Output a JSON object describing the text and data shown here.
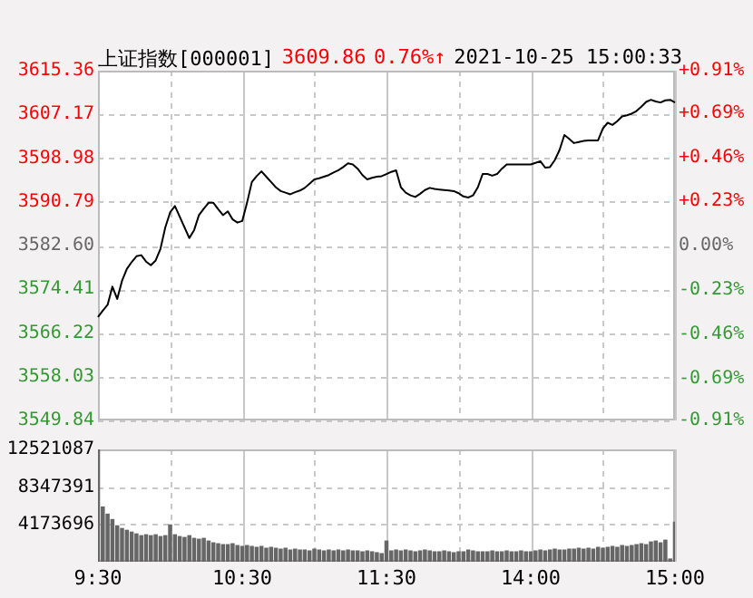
{
  "chart_data": [
    {
      "type": "line",
      "title": "上证指数[000001]",
      "annotations": [
        "3609.86",
        "0.76%↑",
        "2021-10-25 15:00:33"
      ],
      "categories": [
        null,
        null,
        null,
        null,
        null,
        null,
        null,
        null,
        null,
        null,
        null,
        null,
        null,
        null,
        null,
        null,
        null,
        null,
        null,
        null,
        null,
        null,
        null,
        null,
        null,
        null,
        null,
        null,
        null,
        null,
        null,
        null,
        null,
        null,
        null,
        null,
        null,
        null,
        null,
        null,
        null,
        null,
        null,
        null,
        null,
        null,
        null,
        null,
        null,
        null,
        null,
        null,
        null,
        null,
        null,
        null,
        null,
        null,
        null,
        null,
        null,
        null,
        null,
        null,
        null,
        null,
        null,
        null,
        null,
        null,
        null,
        null,
        null,
        null,
        null,
        null,
        null,
        null,
        null,
        null,
        null,
        null,
        null,
        null,
        null,
        null,
        null,
        null,
        null,
        null,
        null,
        null,
        null,
        null,
        null,
        null,
        null,
        null,
        null,
        null,
        null,
        null,
        null,
        null,
        null,
        null,
        null,
        null,
        null,
        null,
        null,
        null,
        null,
        null,
        null,
        null,
        null,
        null,
        null,
        null,
        null
      ],
      "values": [
        3569.2,
        3570.4,
        3571.5,
        3574.9,
        3572.6,
        3576.0,
        3578.2,
        3579.5,
        3580.6,
        3580.8,
        3579.6,
        3578.9,
        3579.8,
        3582.0,
        3586.0,
        3588.8,
        3590.0,
        3588.0,
        3586.0,
        3584.0,
        3585.5,
        3588.3,
        3589.5,
        3590.6,
        3590.6,
        3589.4,
        3588.3,
        3589.0,
        3587.5,
        3586.9,
        3587.2,
        3590.6,
        3594.5,
        3595.6,
        3596.5,
        3595.5,
        3594.5,
        3593.5,
        3592.8,
        3592.5,
        3592.2,
        3592.6,
        3592.9,
        3593.4,
        3594.2,
        3595.0,
        3595.2,
        3595.5,
        3595.8,
        3596.3,
        3596.7,
        3597.3,
        3598.0,
        3597.8,
        3597.0,
        3595.8,
        3595.0,
        3595.3,
        3595.5,
        3595.6,
        3596.0,
        3596.4,
        3596.7,
        3593.5,
        3592.5,
        3592.0,
        3591.7,
        3592.3,
        3593.0,
        3593.4,
        3593.2,
        3593.1,
        3593.0,
        3592.9,
        3592.8,
        3592.4,
        3591.8,
        3591.6,
        3592.0,
        3593.5,
        3596.0,
        3596.0,
        3595.7,
        3596.0,
        3597.0,
        3597.8,
        3597.8,
        3597.8,
        3597.8,
        3597.8,
        3597.8,
        3598.1,
        3598.4,
        3597.2,
        3597.3,
        3598.6,
        3600.5,
        3603.3,
        3602.6,
        3601.8,
        3602.0,
        3602.2,
        3602.3,
        3602.3,
        3602.3,
        3604.5,
        3605.6,
        3605.2,
        3605.9,
        3606.8,
        3607.0,
        3607.3,
        3607.8,
        3608.6,
        3609.5,
        3609.9,
        3609.6,
        3609.4,
        3609.8,
        3609.9,
        3609.4
      ],
      "color": "#000000",
      "ylim": [
        3549.84,
        3615.36
      ],
      "yticks": [
        3549.84,
        3558.03,
        3566.22,
        3574.41,
        {
          "value": 3582.6,
          "label": "3582.60"
        },
        3590.79,
        3598.98,
        3607.17,
        3615.36
      ],
      "y2lim": [
        -0.91,
        0.91
      ],
      "y2ticks": [
        {
          "value": -0.91,
          "label": "-0.91%"
        },
        {
          "value": -0.69,
          "label": "-0.69%"
        },
        {
          "value": -0.46,
          "label": "-0.46%"
        },
        {
          "value": -0.23,
          "label": "-0.23%"
        },
        {
          "value": 0,
          "label": "0.00%"
        },
        {
          "value": 0.23,
          "label": "+0.23%"
        },
        {
          "value": 0.46,
          "label": "+0.46%"
        },
        {
          "value": 0.69,
          "label": "+0.69%"
        },
        {
          "value": 0.91,
          "label": "+0.91%"
        }
      ],
      "grid": true,
      "tick_labels": "y"
    },
    {
      "type": "bar",
      "color": "#666666",
      "categories": [
        "9:30",
        null,
        null,
        null,
        null,
        null,
        null,
        null,
        null,
        null,
        null,
        null,
        null,
        null,
        null,
        null,
        null,
        null,
        null,
        null,
        null,
        null,
        null,
        null,
        null,
        null,
        null,
        null,
        null,
        null,
        "10:30",
        null,
        null,
        null,
        null,
        null,
        null,
        null,
        null,
        null,
        null,
        null,
        null,
        null,
        null,
        null,
        null,
        null,
        null,
        null,
        null,
        null,
        null,
        null,
        null,
        null,
        null,
        null,
        null,
        null,
        "11:30",
        null,
        null,
        null,
        null,
        null,
        null,
        null,
        null,
        null,
        null,
        null,
        null,
        null,
        null,
        null,
        null,
        null,
        null,
        null,
        null,
        null,
        null,
        null,
        null,
        null,
        null,
        null,
        null,
        null,
        "14:00",
        null,
        null,
        null,
        null,
        null,
        null,
        null,
        null,
        null,
        null,
        null,
        null,
        null,
        null,
        null,
        null,
        null,
        null,
        null,
        null,
        null,
        null,
        null,
        null,
        null,
        null,
        null,
        null,
        null,
        "15:00"
      ],
      "values": [
        12500000,
        6100000,
        5300000,
        4700000,
        4000000,
        3700000,
        3500000,
        3300000,
        3100000,
        2900000,
        3000000,
        2900000,
        3000000,
        2800000,
        2900000,
        4100000,
        3000000,
        2800000,
        2700000,
        2900000,
        2600000,
        2500000,
        2600000,
        2300000,
        2100000,
        2000000,
        1900000,
        1900000,
        2000000,
        1800000,
        1700000,
        1800000,
        1700000,
        1600000,
        1700000,
        1500000,
        1600000,
        1500000,
        1400000,
        1500000,
        1300000,
        1400000,
        1300000,
        1300000,
        1200000,
        1400000,
        1300000,
        1200000,
        1300000,
        1200000,
        1300000,
        1200000,
        1300000,
        1200000,
        1200000,
        1100000,
        1200000,
        1100000,
        1000000,
        900000,
        2300000,
        1200000,
        1300000,
        1200000,
        1300000,
        1200000,
        1100000,
        1200000,
        1300000,
        1200000,
        1100000,
        1100000,
        1200000,
        1100000,
        1000000,
        1100000,
        1100000,
        1300000,
        1200000,
        1100000,
        1100000,
        1100000,
        1200000,
        1100000,
        1100000,
        1200000,
        1100000,
        1100000,
        1200000,
        1100000,
        1100000,
        1200000,
        1300000,
        1200000,
        1300000,
        1400000,
        1300000,
        1300000,
        1400000,
        1400000,
        1500000,
        1400000,
        1500000,
        1400000,
        1600000,
        1500000,
        1600000,
        1700000,
        1600000,
        1800000,
        1700000,
        1800000,
        1900000,
        2000000,
        1900000,
        2200000,
        2300000,
        2100000,
        2400000,
        300000,
        4400000
      ],
      "ylim": [
        0,
        12521087
      ],
      "yticks": [
        4173696,
        8347391,
        12521087
      ],
      "grid": true
    }
  ]
}
